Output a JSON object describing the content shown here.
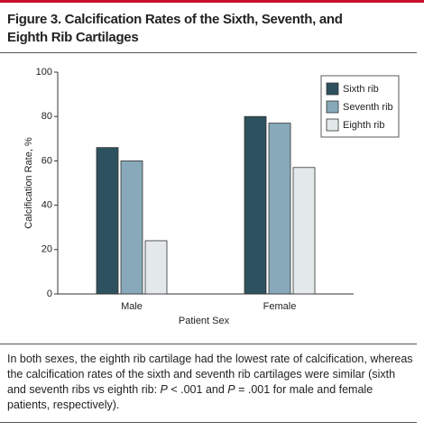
{
  "chart_data": {
    "type": "bar",
    "title": "Figure 3. Calcification Rates of the Sixth, Seventh, and Eighth Rib Cartilages",
    "categories": [
      "Male",
      "Female"
    ],
    "series": [
      {
        "name": "Sixth rib",
        "color": "#2e515f",
        "values": [
          66,
          80
        ]
      },
      {
        "name": "Seventh rib",
        "color": "#87a9b9",
        "values": [
          60,
          77
        ]
      },
      {
        "name": "Eighth rib",
        "color": "#e3e8ea",
        "values": [
          24,
          57
        ]
      }
    ],
    "ylim": [
      0,
      100
    ],
    "yticks": [
      0,
      20,
      40,
      60,
      80,
      100
    ],
    "ylabel": "Calcification Rate, %",
    "xlabel": "Patient Sex",
    "legend": "top-right",
    "caption": [
      "In both sexes, the eighth rib cartilage had the lowest rate of calcification, whereas the calcification rates of the sixth and seventh rib cartilages were similar (sixth and seventh ribs vs eighth rib: ",
      "P",
      " < .001 and ",
      "P",
      " = .001 for male and female patients, respectively)."
    ]
  }
}
